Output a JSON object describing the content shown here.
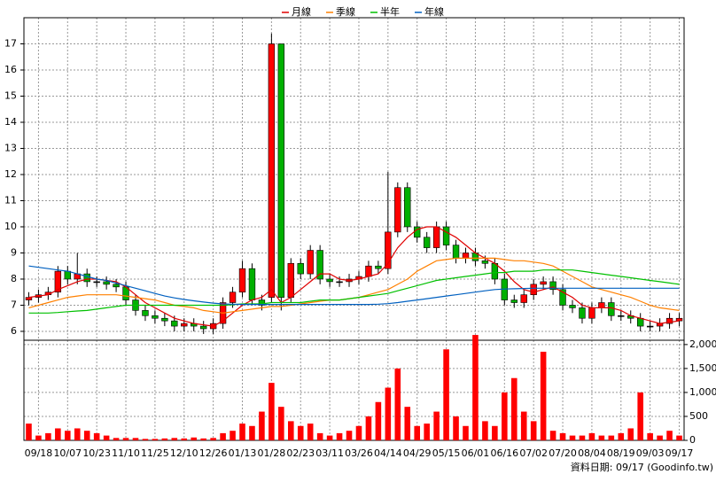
{
  "chart_data": {
    "type": "candlestick",
    "legend": [
      {
        "name": "月線",
        "color": "#e00000"
      },
      {
        "name": "季線",
        "color": "#ff8000"
      },
      {
        "name": "半年",
        "color": "#00c000"
      },
      {
        "name": "年線",
        "color": "#0060c0"
      }
    ],
    "categories": [
      null,
      "09/18",
      null,
      null,
      "10/07",
      null,
      null,
      "10/23",
      null,
      null,
      "11/10",
      null,
      null,
      "11/25",
      null,
      null,
      "12/10",
      null,
      null,
      "12/26",
      null,
      null,
      "01/13",
      null,
      null,
      "01/28",
      null,
      null,
      "02/23",
      null,
      null,
      "03/11",
      null,
      null,
      "03/26",
      null,
      null,
      "04/14",
      null,
      null,
      "04/29",
      null,
      null,
      "05/15",
      null,
      null,
      "06/01",
      null,
      null,
      "06/16",
      null,
      null,
      "07/02",
      null,
      null,
      "07/20",
      null,
      null,
      "08/04",
      null,
      null,
      "08/19",
      null,
      null,
      "09/03",
      null,
      null,
      "09/17"
    ],
    "ohlc": {
      "up_color": "#ff0000",
      "down_color": "#00b000",
      "open": [
        7.2,
        7.3,
        7.4,
        7.5,
        8.3,
        8.0,
        8.2,
        7.9,
        7.9,
        7.8,
        7.7,
        7.2,
        6.8,
        6.6,
        6.5,
        6.4,
        6.2,
        6.3,
        6.2,
        6.1,
        6.3,
        7.1,
        7.5,
        8.4,
        7.2,
        7.3,
        17.0,
        7.3,
        8.6,
        8.2,
        9.1,
        8.0,
        7.9,
        7.9,
        8.0,
        8.1,
        8.5,
        8.4,
        9.8,
        11.5,
        10.0,
        9.6,
        9.2,
        10.0,
        9.3,
        8.8,
        9.0,
        8.7,
        8.6,
        8.0,
        7.2,
        7.1,
        7.4,
        7.8,
        7.9,
        7.6,
        7.0,
        6.9,
        6.5,
        6.9,
        7.1,
        6.6,
        6.6,
        6.5,
        6.2,
        6.2,
        6.3,
        6.4
      ],
      "high": [
        7.5,
        7.6,
        7.7,
        8.5,
        8.5,
        9.0,
        8.4,
        8.1,
        8.1,
        8.0,
        7.9,
        7.4,
        7.0,
        6.8,
        6.7,
        6.6,
        6.5,
        6.5,
        6.4,
        6.5,
        7.3,
        7.7,
        8.7,
        8.6,
        7.4,
        17.4,
        17.0,
        8.8,
        8.8,
        9.3,
        9.3,
        8.2,
        8.1,
        8.2,
        8.3,
        8.7,
        8.7,
        12.1,
        11.7,
        11.7,
        10.2,
        9.8,
        10.2,
        10.2,
        9.5,
        9.2,
        9.2,
        8.9,
        8.8,
        8.2,
        7.4,
        7.6,
        8.0,
        8.1,
        8.1,
        7.8,
        7.2,
        7.1,
        7.1,
        7.3,
        7.3,
        6.8,
        6.8,
        6.7,
        6.4,
        6.5,
        6.7,
        6.7
      ],
      "low": [
        7.0,
        7.1,
        7.2,
        7.3,
        7.8,
        7.8,
        7.7,
        7.7,
        7.6,
        7.5,
        7.0,
        6.6,
        6.4,
        6.3,
        6.2,
        6.0,
        6.0,
        6.0,
        5.9,
        5.9,
        6.1,
        6.9,
        7.3,
        7.0,
        6.8,
        7.1,
        6.8,
        7.1,
        8.0,
        8.0,
        7.8,
        7.7,
        7.7,
        7.7,
        7.8,
        7.9,
        8.2,
        8.2,
        9.6,
        9.8,
        9.4,
        9.0,
        9.0,
        9.1,
        8.6,
        8.6,
        8.5,
        8.4,
        7.8,
        7.0,
        6.9,
        6.9,
        7.2,
        7.6,
        7.4,
        6.8,
        6.7,
        6.3,
        6.3,
        6.7,
        6.4,
        6.4,
        6.3,
        6.0,
        6.0,
        6.0,
        6.1,
        6.2
      ],
      "close": [
        7.3,
        7.4,
        7.5,
        8.3,
        8.0,
        8.2,
        7.9,
        7.9,
        7.8,
        7.7,
        7.2,
        6.8,
        6.6,
        6.5,
        6.4,
        6.2,
        6.3,
        6.2,
        6.1,
        6.3,
        7.1,
        7.5,
        8.4,
        7.2,
        7.0,
        17.0,
        7.3,
        8.6,
        8.2,
        9.1,
        8.0,
        7.9,
        7.9,
        8.0,
        8.1,
        8.5,
        8.4,
        9.8,
        11.5,
        10.0,
        9.6,
        9.2,
        10.0,
        9.3,
        8.8,
        9.0,
        8.7,
        8.6,
        8.0,
        7.2,
        7.1,
        7.4,
        7.8,
        7.9,
        7.6,
        7.0,
        6.9,
        6.5,
        6.9,
        7.1,
        6.6,
        6.6,
        6.5,
        6.2,
        6.2,
        6.3,
        6.5,
        6.5
      ]
    },
    "series": [
      {
        "name": "月線",
        "color": "#e00000",
        "values": [
          7.3,
          7.35,
          7.4,
          7.6,
          7.75,
          7.9,
          8.0,
          8.0,
          7.95,
          7.9,
          7.7,
          7.4,
          7.1,
          6.9,
          6.7,
          6.5,
          6.4,
          6.3,
          6.25,
          6.2,
          6.4,
          6.7,
          7.0,
          7.2,
          7.3,
          7.6,
          7.1,
          7.3,
          7.6,
          7.9,
          8.2,
          8.2,
          8.0,
          7.95,
          8.0,
          8.1,
          8.2,
          8.6,
          9.2,
          9.6,
          9.9,
          10.0,
          10.0,
          9.8,
          9.6,
          9.3,
          9.0,
          8.8,
          8.6,
          8.3,
          7.9,
          7.6,
          7.5,
          7.6,
          7.7,
          7.5,
          7.3,
          7.0,
          6.9,
          6.9,
          6.9,
          6.8,
          6.6,
          6.5,
          6.4,
          6.3,
          6.35,
          6.4
        ]
      },
      {
        "name": "季線",
        "color": "#ff8000",
        "values": [
          6.9,
          7.0,
          7.1,
          7.2,
          7.3,
          7.35,
          7.4,
          7.4,
          7.4,
          7.4,
          7.35,
          7.3,
          7.25,
          7.2,
          7.1,
          7.0,
          6.95,
          6.9,
          6.8,
          6.75,
          6.7,
          6.75,
          6.8,
          6.85,
          6.9,
          6.95,
          6.95,
          7.0,
          7.05,
          7.1,
          7.15,
          7.2,
          7.2,
          7.25,
          7.3,
          7.4,
          7.5,
          7.6,
          7.8,
          8.0,
          8.3,
          8.5,
          8.7,
          8.75,
          8.8,
          8.8,
          8.8,
          8.8,
          8.8,
          8.75,
          8.7,
          8.7,
          8.65,
          8.6,
          8.5,
          8.3,
          8.1,
          7.9,
          7.7,
          7.6,
          7.5,
          7.4,
          7.3,
          7.15,
          7.0,
          6.9,
          6.85,
          6.8
        ]
      },
      {
        "name": "半年",
        "color": "#00c000",
        "values": [
          6.7,
          6.7,
          6.7,
          6.72,
          6.75,
          6.78,
          6.8,
          6.85,
          6.9,
          6.95,
          7.0,
          7.0,
          7.0,
          7.0,
          7.0,
          7.0,
          7.0,
          7.0,
          7.0,
          7.0,
          7.0,
          7.02,
          7.05,
          7.05,
          7.05,
          7.1,
          7.1,
          7.1,
          7.1,
          7.15,
          7.2,
          7.2,
          7.2,
          7.25,
          7.3,
          7.35,
          7.4,
          7.45,
          7.55,
          7.65,
          7.75,
          7.85,
          7.95,
          8.0,
          8.05,
          8.1,
          8.15,
          8.2,
          8.25,
          8.25,
          8.3,
          8.3,
          8.3,
          8.35,
          8.35,
          8.35,
          8.35,
          8.3,
          8.25,
          8.2,
          8.15,
          8.1,
          8.05,
          8.0,
          7.95,
          7.9,
          7.85,
          7.8
        ]
      },
      {
        "name": "年線",
        "color": "#0060c0",
        "values": [
          8.5,
          8.45,
          8.4,
          8.35,
          8.3,
          8.2,
          8.1,
          8.0,
          7.95,
          7.85,
          7.75,
          7.65,
          7.55,
          7.45,
          7.35,
          7.28,
          7.22,
          7.17,
          7.12,
          7.08,
          7.05,
          7.04,
          7.03,
          7.03,
          7.03,
          7.03,
          7.03,
          7.03,
          7.03,
          7.03,
          7.03,
          7.03,
          7.03,
          7.03,
          7.03,
          7.03,
          7.04,
          7.06,
          7.1,
          7.15,
          7.2,
          7.25,
          7.3,
          7.35,
          7.4,
          7.45,
          7.5,
          7.55,
          7.6,
          7.62,
          7.63,
          7.64,
          7.65,
          7.65,
          7.65,
          7.65,
          7.65,
          7.65,
          7.65,
          7.65,
          7.65,
          7.65,
          7.65,
          7.65,
          7.65,
          7.65,
          7.65,
          7.65
        ]
      }
    ],
    "ylim": [
      5.66,
      18
    ],
    "yticks": [
      6,
      7,
      8,
      9,
      10,
      11,
      12,
      13,
      14,
      15,
      16,
      17
    ],
    "grid": true,
    "volume": {
      "color": "#ff0000",
      "values": [
        350,
        100,
        150,
        250,
        200,
        250,
        200,
        150,
        100,
        50,
        50,
        50,
        30,
        30,
        40,
        50,
        40,
        60,
        40,
        50,
        150,
        200,
        350,
        300,
        600,
        1200,
        700,
        400,
        300,
        350,
        150,
        100,
        150,
        200,
        300,
        500,
        800,
        1100,
        1500,
        700,
        300,
        350,
        600,
        1900,
        500,
        300,
        2200,
        400,
        300,
        1000,
        1300,
        600,
        400,
        1850,
        200,
        150,
        100,
        100,
        150,
        100,
        100,
        150,
        250,
        1000,
        150,
        100,
        200,
        100
      ],
      "ylim": [
        0,
        2090
      ],
      "yticks": [
        0,
        500,
        {
          "value": 1000,
          "label": "1,000"
        },
        {
          "value": 1500,
          "label": "1,500"
        },
        {
          "value": 2000,
          "label": "2,000"
        }
      ]
    },
    "source": "資料日期: 09/17 (Goodinfo.tw)"
  }
}
